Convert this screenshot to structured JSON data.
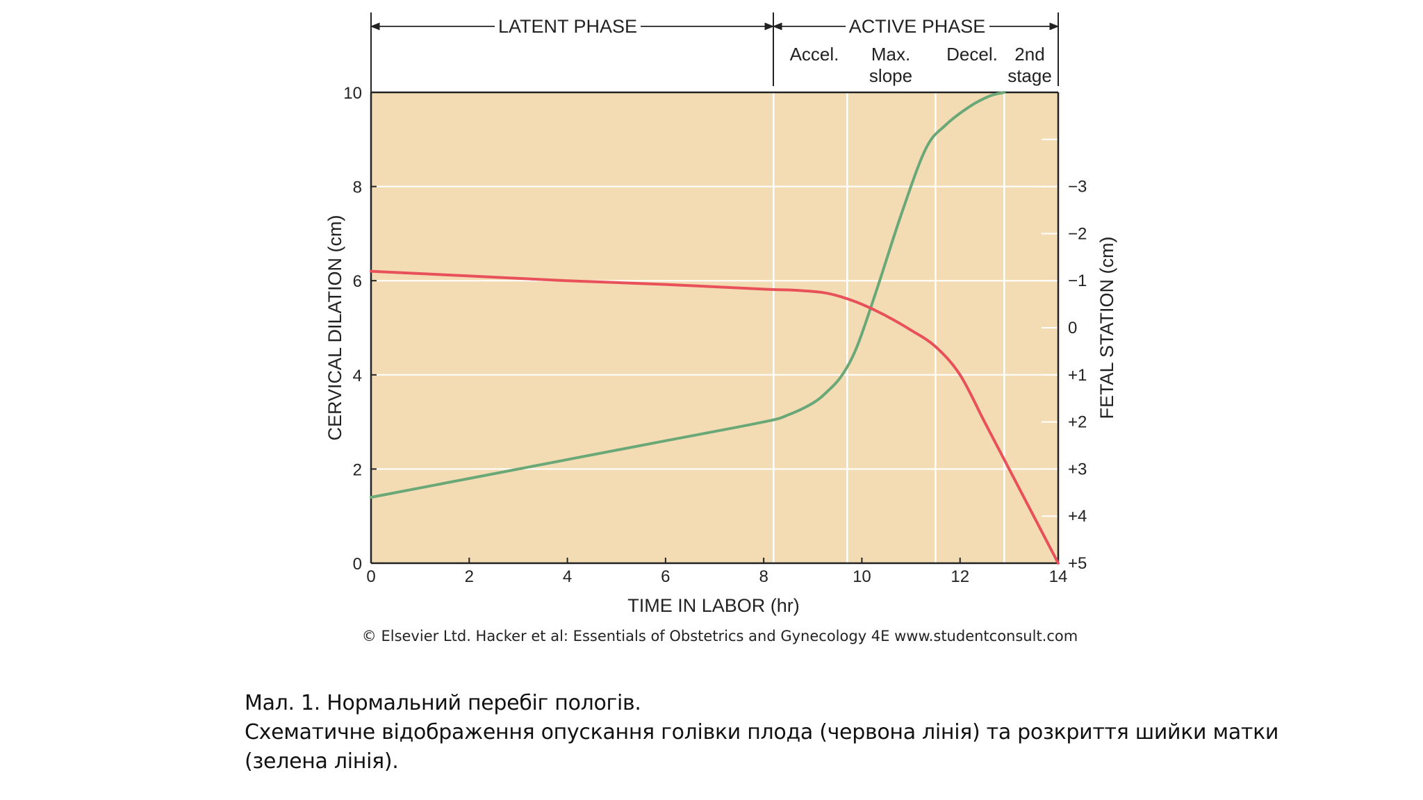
{
  "chart_data": {
    "type": "line",
    "title": "",
    "xlabel": "TIME IN LABOR (hr)",
    "ylabel": "CERVICAL DILATION (cm)",
    "y2label": "FETAL  STATION (cm)",
    "xlim": [
      0,
      14
    ],
    "ylim": [
      0,
      10
    ],
    "y2lim": [
      5,
      -5
    ],
    "x_ticks": [
      "0",
      "2",
      "4",
      "6",
      "8",
      "10",
      "12",
      "14"
    ],
    "y_ticks": [
      "0",
      "2",
      "4",
      "6",
      "8",
      "10"
    ],
    "y2_ticks": [
      "+5",
      "+4",
      "+3",
      "+2",
      "+1",
      "0",
      "−1",
      "−2",
      "−3"
    ],
    "phases": {
      "latent": "LATENT PHASE",
      "active": "ACTIVE PHASE",
      "sub": [
        {
          "id": "accel",
          "lines": [
            "Accel."
          ]
        },
        {
          "id": "maxslope",
          "lines": [
            "Max.",
            "slope"
          ]
        },
        {
          "id": "decel",
          "lines": [
            "Decel."
          ]
        },
        {
          "id": "stage2",
          "lines": [
            "2nd",
            "stage"
          ]
        }
      ],
      "dividers_hr": [
        8.2,
        9.7,
        11.5,
        12.9
      ]
    },
    "series": [
      {
        "name": "Cervical dilation (green line)",
        "color": "#6aa878",
        "axis": "left",
        "x": [
          0,
          2,
          4,
          6,
          8,
          8.5,
          9,
          9.3,
          9.6,
          9.9,
          10.3,
          10.8,
          11.3,
          11.7,
          12.2,
          12.6,
          12.9
        ],
        "y": [
          1.4,
          1.8,
          2.2,
          2.6,
          3.0,
          3.15,
          3.4,
          3.65,
          4.0,
          4.6,
          5.8,
          7.4,
          8.8,
          9.3,
          9.7,
          9.92,
          10
        ]
      },
      {
        "name": "Fetal station (red line)",
        "color": "#e8505a",
        "axis": "right",
        "x": [
          0,
          2,
          4,
          6,
          8,
          8.6,
          9.2,
          9.6,
          10.0,
          10.5,
          11.0,
          11.5,
          12.0,
          12.5,
          13.0,
          13.5,
          14
        ],
        "y": [
          -1.2,
          -1.1,
          -1.0,
          -0.92,
          -0.82,
          -0.8,
          -0.75,
          -0.65,
          -0.5,
          -0.25,
          0.05,
          0.4,
          1.0,
          2.0,
          3.0,
          4.0,
          5.0
        ]
      }
    ],
    "copyright": "© Elsevier Ltd. Hacker et al: Essentials of Obstetrics and Gynecology 4E www.studentconsult.com",
    "plot_bg": "#f3dcb4"
  },
  "caption": {
    "line1": "Мал. 1. Нормальний перебіг пологів.",
    "line2": "Схематичне відображення опускання голівки плода (червона лінія) та розкриття шийки матки",
    "line3": "(зелена лінія)."
  }
}
